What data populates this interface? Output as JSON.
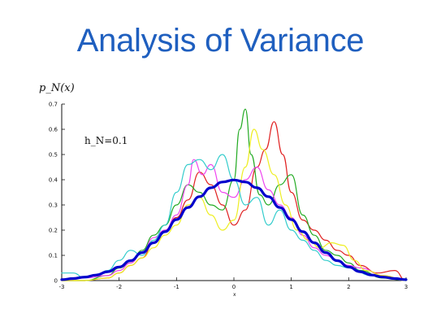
{
  "slide": {
    "title": "Analysis of Variance"
  },
  "chart_data": {
    "type": "line",
    "ylabel": "p_N(x)",
    "xlabel": "x",
    "annotation": "h_N=0.1",
    "xlim": [
      -3,
      3
    ],
    "ylim": [
      0,
      0.7
    ],
    "x_ticks": [
      -3,
      -2,
      -1,
      0,
      1,
      2,
      3
    ],
    "y_ticks": [
      0,
      0.1,
      0.2,
      0.3,
      0.4,
      0.5,
      0.6,
      0.7
    ],
    "y_tick_labels": [
      "0",
      "0.1",
      "0.2",
      "0.3",
      "0.4",
      "0.5",
      "0.6",
      "0.7"
    ],
    "grid": false,
    "series": [
      {
        "color": "#0000cc",
        "width": 3.2,
        "x": [
          -3,
          -2.8,
          -2.6,
          -2.4,
          -2.2,
          -2,
          -1.8,
          -1.6,
          -1.4,
          -1.2,
          -1,
          -0.8,
          -0.6,
          -0.4,
          -0.2,
          0,
          0.2,
          0.4,
          0.6,
          0.8,
          1,
          1.2,
          1.4,
          1.6,
          1.8,
          2,
          2.2,
          2.4,
          2.6,
          2.8,
          3
        ],
        "y": [
          0.004,
          0.008,
          0.014,
          0.022,
          0.035,
          0.054,
          0.079,
          0.111,
          0.15,
          0.194,
          0.242,
          0.29,
          0.333,
          0.368,
          0.391,
          0.399,
          0.391,
          0.368,
          0.333,
          0.29,
          0.242,
          0.194,
          0.15,
          0.111,
          0.079,
          0.054,
          0.035,
          0.022,
          0.014,
          0.008,
          0.004
        ]
      },
      {
        "color": "#e02020",
        "width": 1.2,
        "x": [
          -3,
          -2.6,
          -2.2,
          -2,
          -1.8,
          -1.6,
          -1.4,
          -1.2,
          -1,
          -0.8,
          -0.6,
          -0.4,
          -0.2,
          0,
          0.2,
          0.4,
          0.55,
          0.7,
          0.85,
          1,
          1.2,
          1.4,
          1.6,
          1.8,
          2,
          2.2,
          2.5,
          2.8,
          3
        ],
        "y": [
          0,
          0,
          0.01,
          0.03,
          0.06,
          0.09,
          0.15,
          0.2,
          0.25,
          0.32,
          0.43,
          0.38,
          0.3,
          0.22,
          0.28,
          0.45,
          0.52,
          0.63,
          0.5,
          0.35,
          0.24,
          0.2,
          0.16,
          0.12,
          0.1,
          0.06,
          0.03,
          0.04,
          0
        ]
      },
      {
        "color": "#22aa22",
        "width": 1.2,
        "x": [
          -3,
          -2.6,
          -2.2,
          -2,
          -1.8,
          -1.6,
          -1.4,
          -1.2,
          -1,
          -0.8,
          -0.6,
          -0.4,
          -0.2,
          0,
          0.1,
          0.2,
          0.3,
          0.45,
          0.6,
          0.8,
          1,
          1.2,
          1.4,
          1.6,
          1.8,
          2,
          2.2,
          2.6,
          3
        ],
        "y": [
          0,
          0,
          0.02,
          0.05,
          0.07,
          0.12,
          0.18,
          0.22,
          0.3,
          0.38,
          0.35,
          0.3,
          0.28,
          0.4,
          0.6,
          0.68,
          0.5,
          0.34,
          0.3,
          0.38,
          0.42,
          0.26,
          0.18,
          0.12,
          0.1,
          0.07,
          0.04,
          0.01,
          0
        ]
      },
      {
        "color": "#ee44ee",
        "width": 1.2,
        "x": [
          -3,
          -2.6,
          -2.2,
          -2,
          -1.8,
          -1.6,
          -1.4,
          -1.2,
          -1,
          -0.8,
          -0.7,
          -0.55,
          -0.4,
          -0.2,
          0,
          0.2,
          0.4,
          0.6,
          0.8,
          1,
          1.2,
          1.4,
          1.6,
          1.8,
          2,
          2.2,
          2.6,
          3
        ],
        "y": [
          0,
          0.01,
          0.02,
          0.04,
          0.07,
          0.11,
          0.17,
          0.2,
          0.26,
          0.38,
          0.48,
          0.42,
          0.46,
          0.35,
          0.33,
          0.4,
          0.45,
          0.36,
          0.3,
          0.25,
          0.18,
          0.13,
          0.1,
          0.08,
          0.06,
          0.05,
          0.02,
          0
        ]
      },
      {
        "color": "#eeee22",
        "width": 1.2,
        "x": [
          -3,
          -2.6,
          -2.2,
          -2,
          -1.8,
          -1.6,
          -1.4,
          -1.2,
          -1,
          -0.8,
          -0.6,
          -0.4,
          -0.2,
          0,
          0.2,
          0.35,
          0.5,
          0.7,
          0.9,
          1.1,
          1.3,
          1.5,
          1.7,
          1.9,
          2.1,
          2.3,
          2.6,
          3
        ],
        "y": [
          0,
          0,
          0.01,
          0.03,
          0.06,
          0.09,
          0.13,
          0.18,
          0.22,
          0.3,
          0.33,
          0.26,
          0.2,
          0.24,
          0.45,
          0.6,
          0.52,
          0.42,
          0.3,
          0.2,
          0.16,
          0.13,
          0.15,
          0.14,
          0.08,
          0.04,
          0.02,
          0
        ]
      },
      {
        "color": "#33cccc",
        "width": 1.2,
        "x": [
          -3,
          -2.8,
          -2.6,
          -2.4,
          -2.2,
          -2,
          -1.8,
          -1.6,
          -1.4,
          -1.2,
          -1,
          -0.8,
          -0.6,
          -0.4,
          -0.2,
          0,
          0.2,
          0.4,
          0.6,
          0.8,
          1,
          1.2,
          1.4,
          1.6,
          1.8,
          2,
          2.4,
          2.8,
          3
        ],
        "y": [
          0.03,
          0.03,
          0.01,
          0.02,
          0.04,
          0.08,
          0.12,
          0.1,
          0.16,
          0.22,
          0.35,
          0.46,
          0.48,
          0.44,
          0.5,
          0.4,
          0.3,
          0.33,
          0.22,
          0.28,
          0.2,
          0.16,
          0.12,
          0.08,
          0.06,
          0.05,
          0.02,
          0.01,
          0
        ]
      }
    ]
  }
}
